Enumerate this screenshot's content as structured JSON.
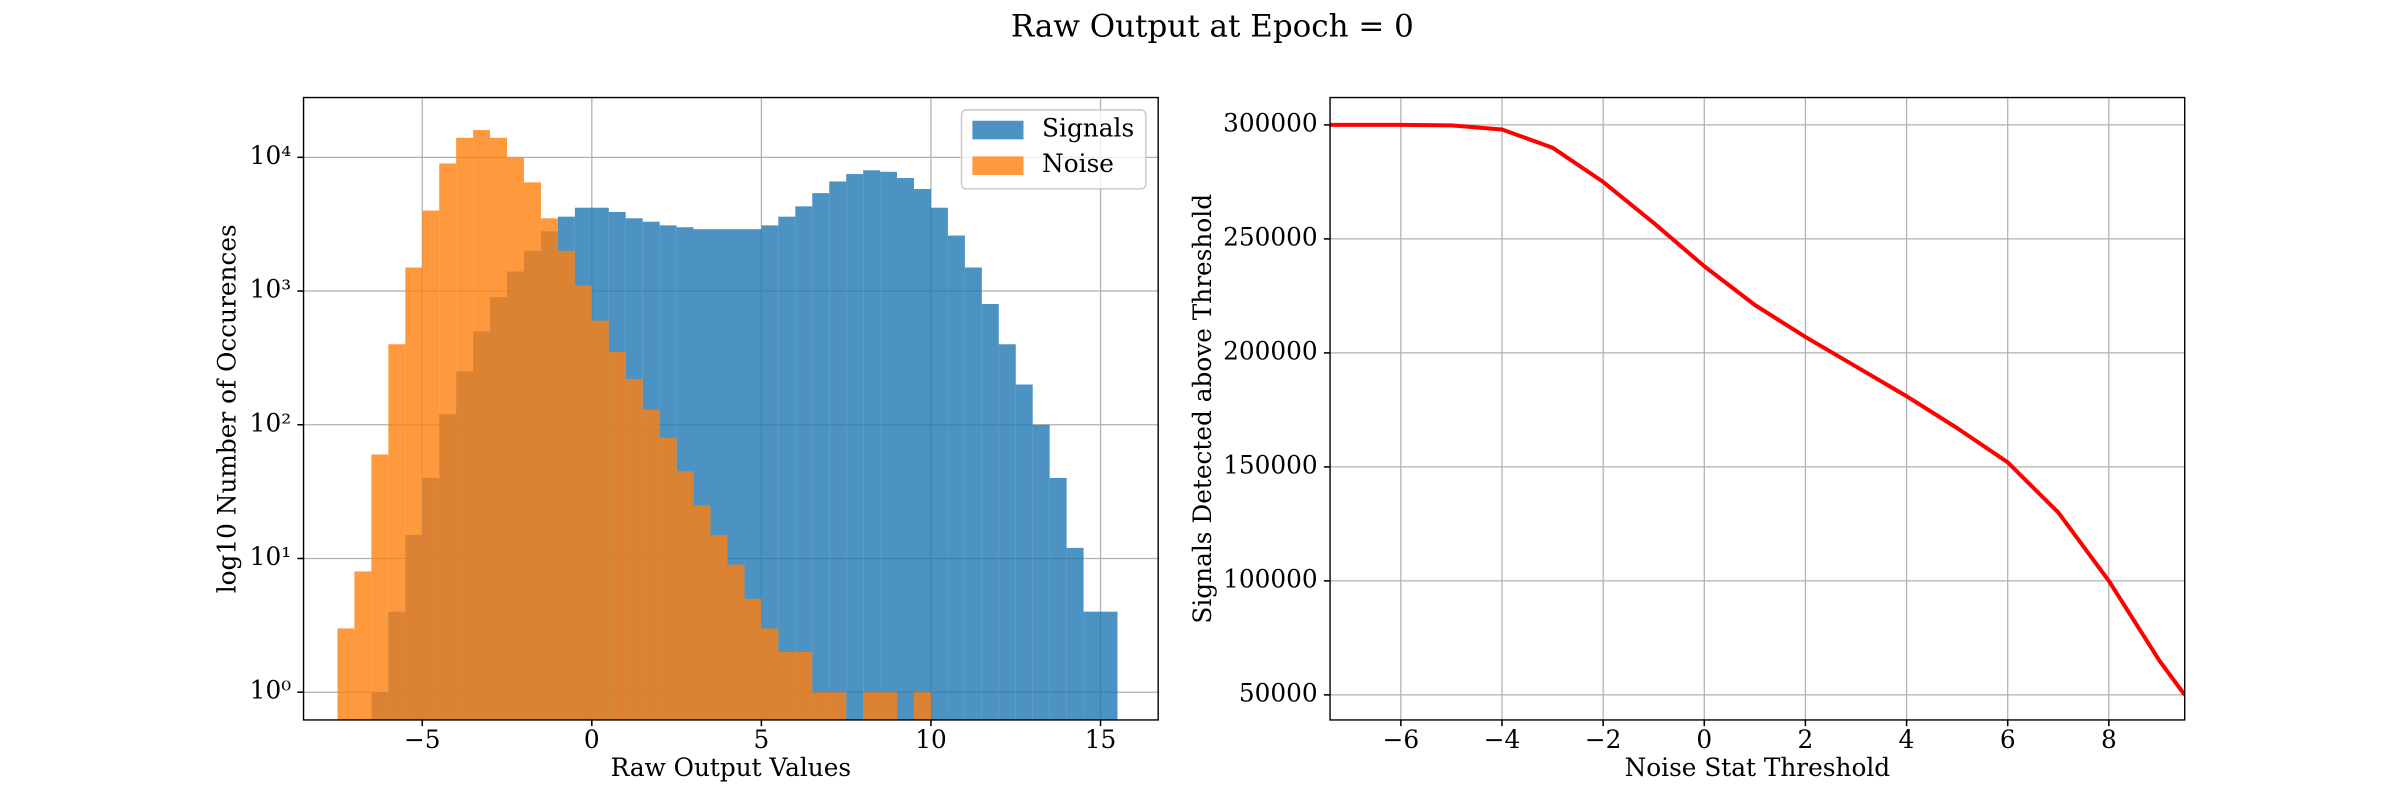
{
  "title": "Raw Output at Epoch = 0",
  "chart_data": [
    {
      "type": "histogram",
      "xlabel": "Raw Output Values",
      "ylabel": "log10 Number of Occurences",
      "xlim": [
        -8.5,
        16.7
      ],
      "ylim": [
        0.62,
        28000
      ],
      "log_y": true,
      "grid": true,
      "legend": "upper right",
      "xticks": [
        {
          "value": -5,
          "label": "−5"
        },
        0,
        5,
        10,
        15
      ],
      "yticks": [
        {
          "value": 1,
          "label": "10⁰"
        },
        {
          "value": 10,
          "label": "10¹"
        },
        {
          "value": 100,
          "label": "10²"
        },
        {
          "value": 1000,
          "label": "10³"
        },
        {
          "value": 10000,
          "label": "10⁴"
        }
      ],
      "series": [
        {
          "name": "Signals",
          "color": "#1f77b4",
          "bins": [
            -6.5,
            -6,
            -5.5,
            -5,
            -4.5,
            -4,
            -3.5,
            -3,
            -2.5,
            -2,
            -1.5,
            -1,
            -0.5,
            0,
            0.5,
            1,
            1.5,
            2,
            2.5,
            3,
            3.5,
            4,
            4.5,
            5,
            5.5,
            6,
            6.5,
            7,
            7.5,
            8,
            8.5,
            9,
            9.5,
            10,
            10.5,
            11,
            11.5,
            12,
            12.5,
            13,
            13.5,
            14,
            14.5,
            15,
            15.5
          ],
          "values": [
            1,
            4,
            15,
            40,
            120,
            250,
            500,
            900,
            1400,
            2000,
            2800,
            3600,
            4200,
            4200,
            3900,
            3500,
            3300,
            3100,
            3000,
            2900,
            2900,
            2900,
            2900,
            3100,
            3600,
            4300,
            5400,
            6600,
            7500,
            8000,
            7800,
            7000,
            5800,
            4200,
            2600,
            1500,
            800,
            400,
            200,
            100,
            40,
            12,
            4,
            4
          ]
        },
        {
          "name": "Noise",
          "color": "#ff7f0e",
          "bins": [
            -7.5,
            -7,
            -6.5,
            -6,
            -5.5,
            -5,
            -4.5,
            -4,
            -3.5,
            -3,
            -2.5,
            -2,
            -1.5,
            -1,
            -0.5,
            0,
            0.5,
            1,
            1.5,
            2,
            2.5,
            3,
            3.5,
            4,
            4.5,
            5,
            5.5,
            6,
            6.5,
            7,
            7.5,
            8,
            8.5,
            9,
            9.5,
            10
          ],
          "values": [
            3,
            8,
            60,
            400,
            1500,
            4000,
            9000,
            14000,
            16000,
            14000,
            10000,
            6500,
            3500,
            2000,
            1100,
            600,
            350,
            220,
            130,
            80,
            45,
            25,
            15,
            9,
            5,
            3,
            2,
            2,
            1,
            1,
            0,
            1,
            1,
            0,
            1
          ]
        }
      ]
    },
    {
      "type": "line",
      "xlabel": "Noise Stat Threshold",
      "ylabel": "Signals Detected above Threshold",
      "xlim": [
        -7.4,
        9.5
      ],
      "ylim": [
        39000,
        312000
      ],
      "grid": true,
      "color": "#ff0000",
      "xticks": [
        {
          "value": -6,
          "label": "−6"
        },
        {
          "value": -4,
          "label": "−4"
        },
        {
          "value": -2,
          "label": "−2"
        },
        0,
        2,
        4,
        6,
        8
      ],
      "yticks": [
        50000,
        100000,
        150000,
        200000,
        250000,
        300000
      ],
      "x": [
        -7.4,
        -6,
        -5,
        -4,
        -3,
        -2,
        -1,
        0,
        1,
        2,
        3,
        4,
        5,
        6,
        7,
        8,
        9,
        9.5
      ],
      "values": [
        300000,
        300000,
        299800,
        298000,
        290000,
        275000,
        257000,
        238000,
        221000,
        207000,
        194000,
        181000,
        167000,
        152000,
        130000,
        100000,
        65000,
        50000
      ]
    }
  ]
}
